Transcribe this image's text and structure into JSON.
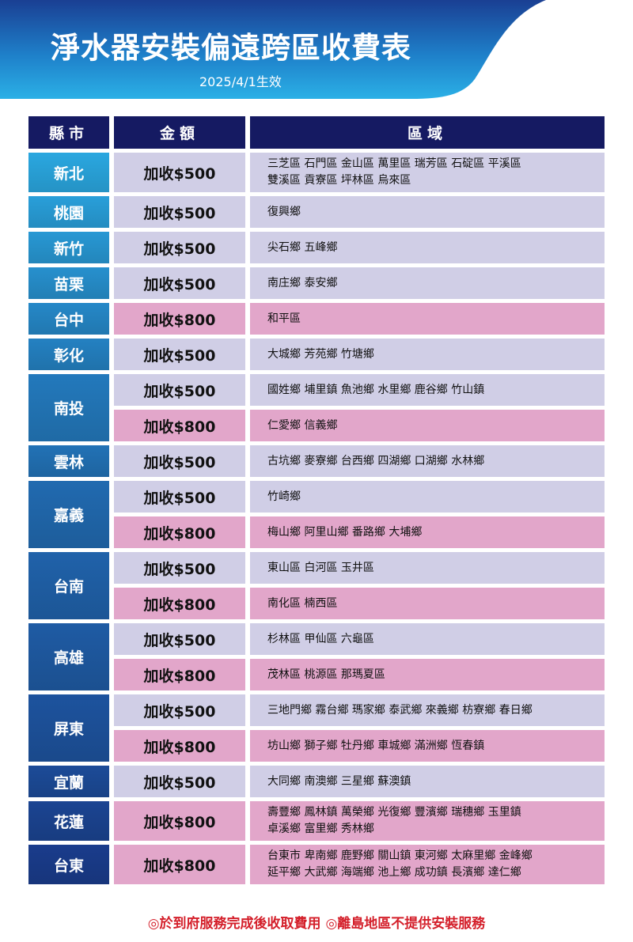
{
  "header": {
    "title": "淨水器安裝偏遠跨區收費表",
    "subtitle": "2025/4/1生效"
  },
  "columns": [
    "縣市",
    "金額",
    "區域"
  ],
  "colors": {
    "lavender": "#d0cee6",
    "pink": "#e2a6ca",
    "header": "#151a62",
    "county_top": "#2aa7e0",
    "county_bottom": "#1a3c8c",
    "footer": "#d41f2a"
  },
  "rows": [
    {
      "county": "新北",
      "items": [
        {
          "fee": "加收$500",
          "tier": "500",
          "areas": "三芝區 石門區 金山區 萬里區 瑞芳區 石碇區 平溪區\n雙溪區 貢寮區 坪林區 烏來區"
        }
      ]
    },
    {
      "county": "桃園",
      "items": [
        {
          "fee": "加收$500",
          "tier": "500",
          "areas": "復興鄉"
        }
      ]
    },
    {
      "county": "新竹",
      "items": [
        {
          "fee": "加收$500",
          "tier": "500",
          "areas": "尖石鄉 五峰鄉"
        }
      ]
    },
    {
      "county": "苗栗",
      "items": [
        {
          "fee": "加收$500",
          "tier": "500",
          "areas": "南庄鄉 泰安鄉"
        }
      ]
    },
    {
      "county": "台中",
      "items": [
        {
          "fee": "加收$800",
          "tier": "800",
          "areas": "和平區"
        }
      ]
    },
    {
      "county": "彰化",
      "items": [
        {
          "fee": "加收$500",
          "tier": "500",
          "areas": "大城鄉 芳苑鄉 竹塘鄉"
        }
      ]
    },
    {
      "county": "南投",
      "items": [
        {
          "fee": "加收$500",
          "tier": "500",
          "areas": "國姓鄉 埔里鎮 魚池鄉 水里鄉 鹿谷鄉 竹山鎮"
        },
        {
          "fee": "加收$800",
          "tier": "800",
          "areas": "仁愛鄉 信義鄉"
        }
      ]
    },
    {
      "county": "雲林",
      "items": [
        {
          "fee": "加收$500",
          "tier": "500",
          "areas": "古坑鄉 麥寮鄉 台西鄉 四湖鄉 口湖鄉 水林鄉"
        }
      ]
    },
    {
      "county": "嘉義",
      "items": [
        {
          "fee": "加收$500",
          "tier": "500",
          "areas": "竹崎鄉"
        },
        {
          "fee": "加收$800",
          "tier": "800",
          "areas": "梅山鄉 阿里山鄉 番路鄉 大埔鄉"
        }
      ]
    },
    {
      "county": "台南",
      "items": [
        {
          "fee": "加收$500",
          "tier": "500",
          "areas": "東山區 白河區 玉井區"
        },
        {
          "fee": "加收$800",
          "tier": "800",
          "areas": "南化區 楠西區"
        }
      ]
    },
    {
      "county": "高雄",
      "items": [
        {
          "fee": "加收$500",
          "tier": "500",
          "areas": "杉林區 甲仙區 六龜區"
        },
        {
          "fee": "加收$800",
          "tier": "800",
          "areas": "茂林區 桃源區 那瑪夏區"
        }
      ]
    },
    {
      "county": "屏東",
      "items": [
        {
          "fee": "加收$500",
          "tier": "500",
          "areas": "三地門鄉 霧台鄉 瑪家鄉 泰武鄉 來義鄉 枋寮鄉 春日鄉"
        },
        {
          "fee": "加收$800",
          "tier": "800",
          "areas": "坊山鄉 獅子鄉 牡丹鄉 車城鄉 滿洲鄉 恆春鎮"
        }
      ]
    },
    {
      "county": "宜蘭",
      "items": [
        {
          "fee": "加收$500",
          "tier": "500",
          "areas": "大同鄉 南澳鄉 三星鄉 蘇澳鎮"
        }
      ]
    },
    {
      "county": "花蓮",
      "items": [
        {
          "fee": "加收$800",
          "tier": "800",
          "areas": "壽豐鄉 鳳林鎮 萬榮鄉 光復鄉 豐濱鄉 瑞穗鄉 玉里鎮\n卓溪鄉 富里鄉 秀林鄉"
        }
      ]
    },
    {
      "county": "台東",
      "items": [
        {
          "fee": "加收$800",
          "tier": "800",
          "areas": "台東市 卑南鄉 鹿野鄉 關山鎮 東河鄉 太麻里鄉 金峰鄉\n延平鄉 大武鄉 海端鄉 池上鄉 成功鎮 長濱鄉 達仁鄉"
        }
      ]
    }
  ],
  "footer": "◎於到府服務完成後收取費用 ◎離島地區不提供安裝服務"
}
